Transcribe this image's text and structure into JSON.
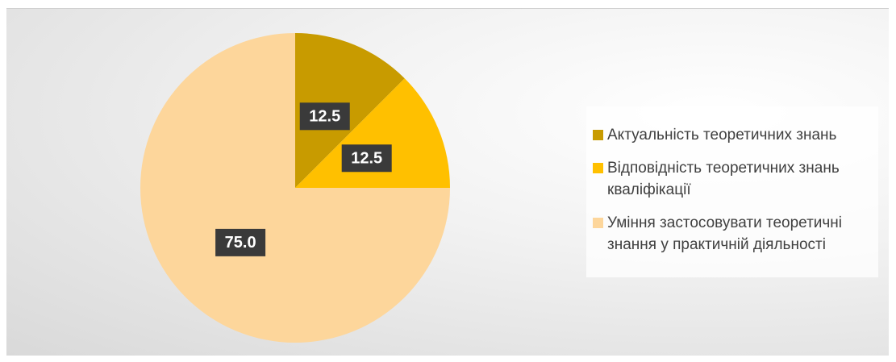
{
  "chart_data": {
    "type": "pie",
    "categories": [
      "Актуальність теоретичних знань",
      "Відповідність теоретичних знань кваліфікації",
      "Уміння застосовувати теоретичні знання у практичній діяльності"
    ],
    "values": [
      12.5,
      12.5,
      75
    ],
    "value_labels": [
      "12.5",
      "12.5",
      "75.0"
    ],
    "colors": [
      "#c89b00",
      "#ffc000",
      "#fdd69b"
    ],
    "legend": "right"
  }
}
